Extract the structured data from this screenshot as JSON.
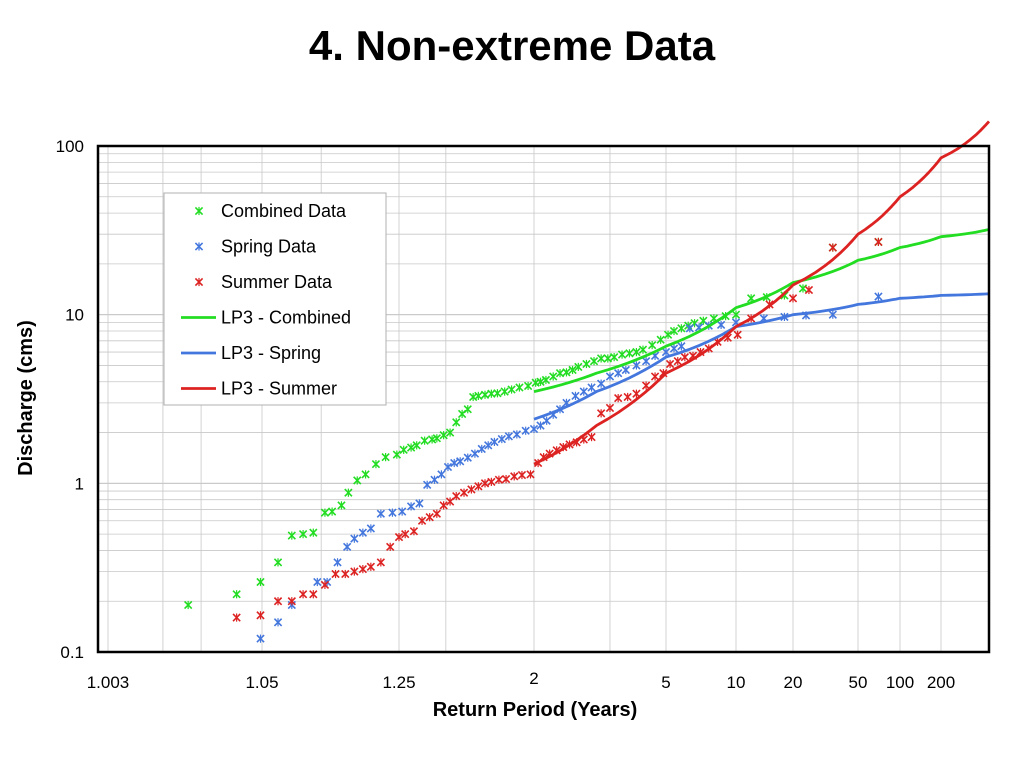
{
  "title": "4. Non-extreme Data",
  "chart_data": {
    "type": "scatter",
    "title": "4. Non-extreme Data",
    "xlabel": "Return Period (Years)",
    "ylabel": "Discharge (cms)",
    "x_scale": "probability (return period)",
    "y_scale": "log",
    "ylim": [
      0.1,
      100
    ],
    "xlim": [
      1.003,
      500
    ],
    "grid": true,
    "legend_placement": "top-left",
    "x_tick_labels": [
      {
        "value": 1.003,
        "label": "1.003"
      },
      {
        "value": 1.05,
        "label": "1.05"
      },
      {
        "value": 1.25,
        "label": "1.25"
      },
      {
        "value": 2,
        "label": "2"
      },
      {
        "value": 5,
        "label": "5"
      },
      {
        "value": 10,
        "label": "10"
      },
      {
        "value": 20,
        "label": "20"
      },
      {
        "value": 50,
        "label": "50"
      },
      {
        "value": 100,
        "label": "100"
      },
      {
        "value": 200,
        "label": "200"
      }
    ],
    "y_tick_labels": [
      {
        "value": 0.1,
        "label": "0.1"
      },
      {
        "value": 1,
        "label": "1"
      },
      {
        "value": 10,
        "label": "10"
      },
      {
        "value": 100,
        "label": "100"
      }
    ],
    "series": [
      {
        "name": "Combined Data",
        "kind": "points",
        "color": "#22dd22",
        "points": [
          [
            1.016,
            0.19
          ],
          [
            1.035,
            0.22
          ],
          [
            1.049,
            0.26
          ],
          [
            1.063,
            0.34
          ],
          [
            1.076,
            0.49
          ],
          [
            1.088,
            0.5
          ],
          [
            1.1,
            0.51
          ],
          [
            1.115,
            0.67
          ],
          [
            1.125,
            0.68
          ],
          [
            1.139,
            0.74
          ],
          [
            1.15,
            0.88
          ],
          [
            1.165,
            1.04
          ],
          [
            1.18,
            1.13
          ],
          [
            1.2,
            1.3
          ],
          [
            1.22,
            1.43
          ],
          [
            1.245,
            1.48
          ],
          [
            1.265,
            1.58
          ],
          [
            1.29,
            1.63
          ],
          [
            1.31,
            1.68
          ],
          [
            1.34,
            1.79
          ],
          [
            1.37,
            1.82
          ],
          [
            1.39,
            1.85
          ],
          [
            1.42,
            1.93
          ],
          [
            1.45,
            2.0
          ],
          [
            1.48,
            2.3
          ],
          [
            1.51,
            2.58
          ],
          [
            1.54,
            2.75
          ],
          [
            1.57,
            3.25
          ],
          [
            1.6,
            3.3
          ],
          [
            1.64,
            3.35
          ],
          [
            1.68,
            3.4
          ],
          [
            1.72,
            3.42
          ],
          [
            1.77,
            3.5
          ],
          [
            1.82,
            3.6
          ],
          [
            1.88,
            3.7
          ],
          [
            1.95,
            3.78
          ],
          [
            2.02,
            3.95
          ],
          [
            2.08,
            4.0
          ],
          [
            2.15,
            4.1
          ],
          [
            2.25,
            4.3
          ],
          [
            2.35,
            4.5
          ],
          [
            2.45,
            4.55
          ],
          [
            2.55,
            4.7
          ],
          [
            2.65,
            4.9
          ],
          [
            2.8,
            5.1
          ],
          [
            2.95,
            5.3
          ],
          [
            3.1,
            5.5
          ],
          [
            3.25,
            5.5
          ],
          [
            3.4,
            5.6
          ],
          [
            3.6,
            5.8
          ],
          [
            3.8,
            5.9
          ],
          [
            4.0,
            6.0
          ],
          [
            4.2,
            6.2
          ],
          [
            4.5,
            6.6
          ],
          [
            4.8,
            7.1
          ],
          [
            5.1,
            7.6
          ],
          [
            5.4,
            8.0
          ],
          [
            5.8,
            8.3
          ],
          [
            6.2,
            8.6
          ],
          [
            6.6,
            8.9
          ],
          [
            7.2,
            9.2
          ],
          [
            8.0,
            9.5
          ],
          [
            9.0,
            9.8
          ],
          [
            10.0,
            10.0
          ],
          [
            12.0,
            12.5
          ],
          [
            14.5,
            12.7
          ],
          [
            18.0,
            13.0
          ],
          [
            23.0,
            14.3
          ],
          [
            35.0,
            25.0
          ],
          [
            70.0,
            27.0
          ]
        ]
      },
      {
        "name": "Spring Data",
        "kind": "points",
        "color": "#4477dd",
        "points": [
          [
            1.049,
            0.12
          ],
          [
            1.063,
            0.15
          ],
          [
            1.076,
            0.19
          ],
          [
            1.105,
            0.26
          ],
          [
            1.118,
            0.26
          ],
          [
            1.133,
            0.34
          ],
          [
            1.148,
            0.42
          ],
          [
            1.16,
            0.47
          ],
          [
            1.175,
            0.51
          ],
          [
            1.19,
            0.54
          ],
          [
            1.21,
            0.66
          ],
          [
            1.235,
            0.67
          ],
          [
            1.26,
            0.68
          ],
          [
            1.29,
            0.73
          ],
          [
            1.32,
            0.76
          ],
          [
            1.35,
            0.98
          ],
          [
            1.38,
            1.05
          ],
          [
            1.41,
            1.13
          ],
          [
            1.44,
            1.25
          ],
          [
            1.47,
            1.32
          ],
          [
            1.5,
            1.35
          ],
          [
            1.54,
            1.42
          ],
          [
            1.58,
            1.5
          ],
          [
            1.62,
            1.6
          ],
          [
            1.66,
            1.68
          ],
          [
            1.7,
            1.76
          ],
          [
            1.75,
            1.83
          ],
          [
            1.8,
            1.9
          ],
          [
            1.86,
            1.95
          ],
          [
            1.93,
            2.05
          ],
          [
            2.0,
            2.1
          ],
          [
            2.08,
            2.2
          ],
          [
            2.16,
            2.35
          ],
          [
            2.25,
            2.55
          ],
          [
            2.35,
            2.75
          ],
          [
            2.45,
            3.0
          ],
          [
            2.6,
            3.3
          ],
          [
            2.75,
            3.5
          ],
          [
            2.9,
            3.7
          ],
          [
            3.1,
            3.9
          ],
          [
            3.3,
            4.3
          ],
          [
            3.5,
            4.5
          ],
          [
            3.7,
            4.7
          ],
          [
            4.0,
            5.0
          ],
          [
            4.3,
            5.3
          ],
          [
            4.6,
            5.7
          ],
          [
            5.0,
            6.0
          ],
          [
            5.4,
            6.3
          ],
          [
            5.8,
            6.5
          ],
          [
            6.3,
            8.3
          ],
          [
            6.9,
            8.4
          ],
          [
            7.6,
            8.6
          ],
          [
            8.6,
            8.7
          ],
          [
            10.0,
            9.0
          ],
          [
            14.0,
            9.5
          ],
          [
            18.0,
            9.7
          ],
          [
            24.0,
            9.9
          ],
          [
            35.0,
            10.0
          ],
          [
            70.0,
            12.8
          ]
        ]
      },
      {
        "name": "Summer Data",
        "kind": "points",
        "color": "#dd2222",
        "points": [
          [
            1.035,
            0.16
          ],
          [
            1.049,
            0.165
          ],
          [
            1.063,
            0.2
          ],
          [
            1.076,
            0.2
          ],
          [
            1.088,
            0.22
          ],
          [
            1.1,
            0.22
          ],
          [
            1.115,
            0.25
          ],
          [
            1.13,
            0.29
          ],
          [
            1.145,
            0.29
          ],
          [
            1.16,
            0.3
          ],
          [
            1.175,
            0.31
          ],
          [
            1.19,
            0.32
          ],
          [
            1.21,
            0.34
          ],
          [
            1.23,
            0.42
          ],
          [
            1.25,
            0.48
          ],
          [
            1.27,
            0.5
          ],
          [
            1.3,
            0.52
          ],
          [
            1.33,
            0.6
          ],
          [
            1.36,
            0.63
          ],
          [
            1.39,
            0.66
          ],
          [
            1.42,
            0.74
          ],
          [
            1.45,
            0.78
          ],
          [
            1.48,
            0.84
          ],
          [
            1.52,
            0.88
          ],
          [
            1.56,
            0.92
          ],
          [
            1.6,
            0.96
          ],
          [
            1.64,
            1.0
          ],
          [
            1.68,
            1.02
          ],
          [
            1.73,
            1.05
          ],
          [
            1.78,
            1.06
          ],
          [
            1.84,
            1.1
          ],
          [
            1.9,
            1.12
          ],
          [
            1.97,
            1.13
          ],
          [
            2.05,
            1.32
          ],
          [
            2.12,
            1.43
          ],
          [
            2.2,
            1.5
          ],
          [
            2.3,
            1.57
          ],
          [
            2.4,
            1.64
          ],
          [
            2.5,
            1.7
          ],
          [
            2.62,
            1.75
          ],
          [
            2.75,
            1.82
          ],
          [
            2.9,
            1.88
          ],
          [
            3.1,
            2.6
          ],
          [
            3.3,
            2.8
          ],
          [
            3.5,
            3.2
          ],
          [
            3.75,
            3.25
          ],
          [
            4.0,
            3.4
          ],
          [
            4.3,
            3.8
          ],
          [
            4.6,
            4.3
          ],
          [
            4.9,
            4.5
          ],
          [
            5.2,
            5.1
          ],
          [
            5.6,
            5.3
          ],
          [
            6.0,
            5.6
          ],
          [
            6.5,
            5.7
          ],
          [
            7.0,
            6.0
          ],
          [
            7.6,
            6.3
          ],
          [
            8.3,
            6.9
          ],
          [
            9.2,
            7.3
          ],
          [
            10.2,
            7.6
          ],
          [
            12.0,
            9.5
          ],
          [
            15.0,
            11.5
          ],
          [
            20.0,
            12.5
          ],
          [
            25.0,
            14.0
          ],
          [
            35.0,
            25.0
          ],
          [
            70.0,
            27.0
          ]
        ]
      },
      {
        "name": "LP3 - Combined",
        "kind": "line",
        "color": "#22dd22",
        "points": [
          [
            2,
            3.5
          ],
          [
            3,
            4.5
          ],
          [
            5,
            6.5
          ],
          [
            10,
            11
          ],
          [
            20,
            15.5
          ],
          [
            50,
            21
          ],
          [
            100,
            25
          ],
          [
            200,
            29
          ],
          [
            500,
            32
          ]
        ]
      },
      {
        "name": "LP3 - Spring",
        "kind": "line",
        "color": "#4477dd",
        "points": [
          [
            2,
            2.4
          ],
          [
            3,
            3.5
          ],
          [
            5,
            5.6
          ],
          [
            10,
            8.5
          ],
          [
            20,
            10
          ],
          [
            50,
            11.5
          ],
          [
            100,
            12.5
          ],
          [
            200,
            13
          ],
          [
            500,
            13.3
          ]
        ]
      },
      {
        "name": "LP3 - Summer",
        "kind": "line",
        "color": "#dd2222",
        "points": [
          [
            2,
            1.3
          ],
          [
            3,
            2.2
          ],
          [
            5,
            4.5
          ],
          [
            10,
            8.5
          ],
          [
            20,
            15
          ],
          [
            50,
            30
          ],
          [
            100,
            50
          ],
          [
            200,
            85
          ],
          [
            500,
            140
          ]
        ]
      }
    ]
  },
  "legend": {
    "items": [
      {
        "label": "Combined Data",
        "symbol": "marker",
        "color": "#22dd22"
      },
      {
        "label": "Spring Data",
        "symbol": "marker",
        "color": "#4477dd"
      },
      {
        "label": "Summer Data",
        "symbol": "marker",
        "color": "#dd2222"
      },
      {
        "label": "LP3 - Combined",
        "symbol": "line",
        "color": "#22dd22"
      },
      {
        "label": "LP3 - Spring",
        "symbol": "line",
        "color": "#4477dd"
      },
      {
        "label": "LP3 - Summer",
        "symbol": "line",
        "color": "#dd2222"
      }
    ]
  }
}
